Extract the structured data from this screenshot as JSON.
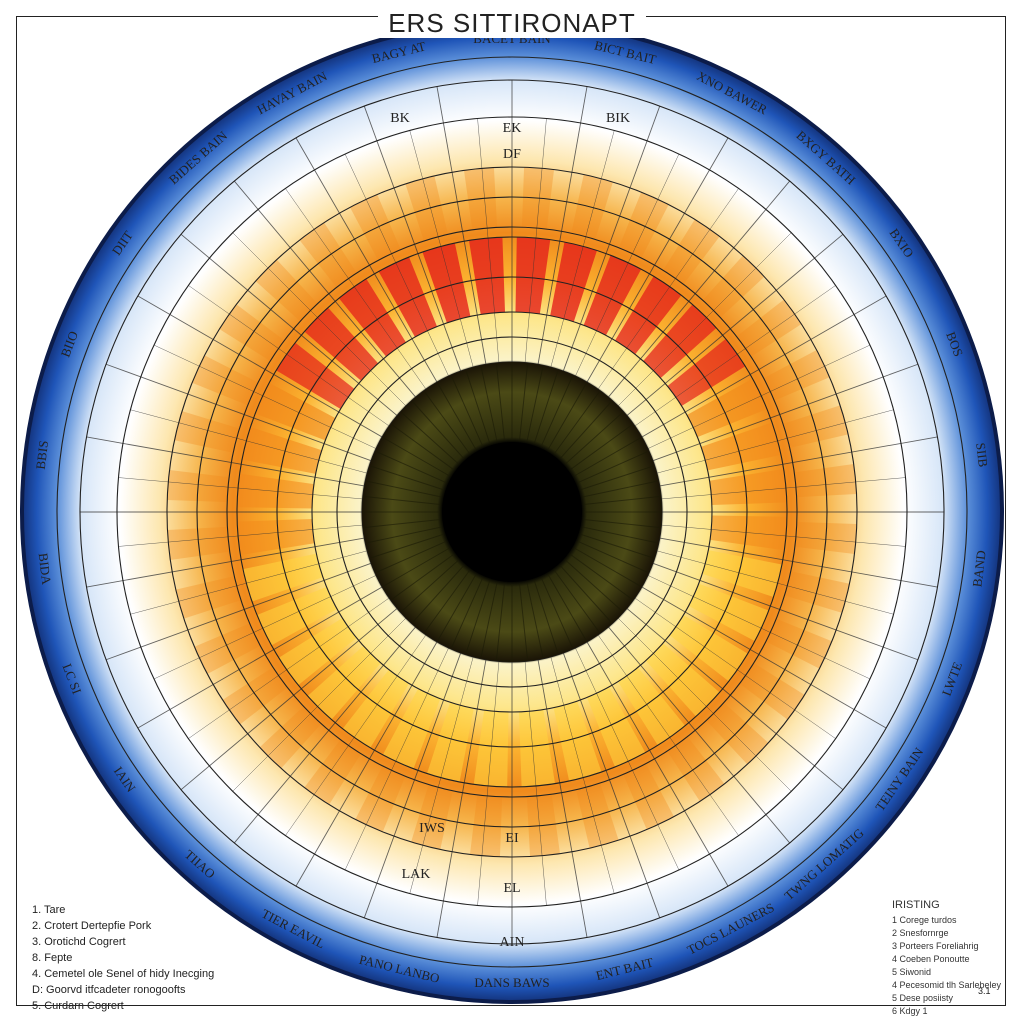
{
  "title": "ERS SITTIRONAPT",
  "outer_labels": [
    "BACET BAIN",
    "BICT BAIT",
    "XNO BAWER",
    "BXGY BATH",
    "BXIO",
    "BOS",
    "SIIB",
    "BAND",
    "LWTE",
    "TEINY BAIN",
    "TWNG LOMATIG",
    "TOCS LAUNERS",
    "ENT BAIT",
    "DANS BAWS",
    "PANO LANBO",
    "TIER EAVIL",
    "TIIAO",
    "IAIN",
    "LC SI",
    "BIDA",
    "BBIS",
    "BIIO",
    "DIIT",
    "BIDES BAIN",
    "HAVAY BAIN",
    "BAGY AT"
  ],
  "inner_labels": {
    "top": [
      "EK",
      "DF",
      "BIK",
      "BK"
    ],
    "bottom": [
      "IWS",
      "EI",
      "LAK",
      "EL",
      "AIN"
    ]
  },
  "legend_left": [
    "1. Tare",
    "2. Crotert Dertepfie Pork",
    "3. Orotichd Cogrert",
    "8. Fepte",
    "4. Cemetel ole Senel of hidy Inecging",
    "D: Goorvd itfcadeter ronogoofts",
    "5. Curdarn Cogrert"
  ],
  "legend_right": {
    "title": "IRISTING",
    "items": [
      "1 Corege turdos",
      "2 Snesfornrge",
      "3 Porteers Foreliahrig",
      "4 Coeben Ponoutte",
      "5 Siwonid",
      "4 Pecesomid tlh Sarlebeley",
      "5 Dese posiisty",
      "6 Kdgy 1"
    ]
  },
  "page_number": "3.1",
  "colors": {
    "outer_blue": "#1f55b8",
    "light_blue": "#a9c8ef",
    "yellow": "#ffd640",
    "orange": "#f28a1c",
    "red": "#e3201b",
    "pupil": "#050402",
    "iris_green": "#4b4a16"
  }
}
